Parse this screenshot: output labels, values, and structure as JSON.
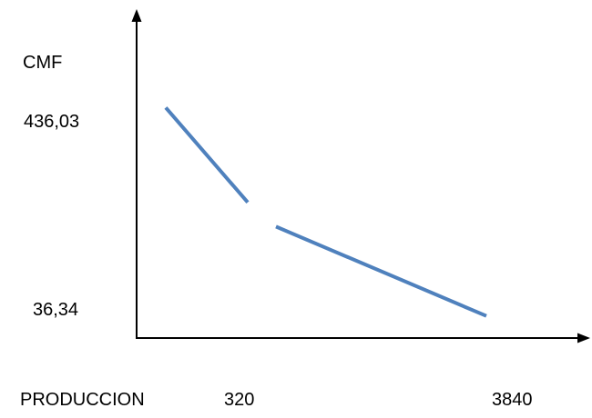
{
  "chart_data": {
    "type": "line",
    "title": "",
    "ylabel": "CMF",
    "xlabel": "PRODUCCION",
    "x_ticks": [
      "320",
      "3840"
    ],
    "y_ticks": [
      "436,03",
      "36,34"
    ],
    "series": [
      {
        "segments": [
          {
            "x": [
              320,
              1220
            ],
            "y": [
              436.03,
              254.2
            ]
          },
          {
            "x": [
              1530,
              3840
            ],
            "y": [
              207.7,
              36.34
            ]
          }
        ]
      }
    ],
    "xlim": [
      -220,
      4780
    ],
    "ylim": [
      -6,
      625
    ],
    "grid": false,
    "legend": "none"
  },
  "colors": {
    "line": "#4f81bd",
    "axis": "#000000"
  }
}
